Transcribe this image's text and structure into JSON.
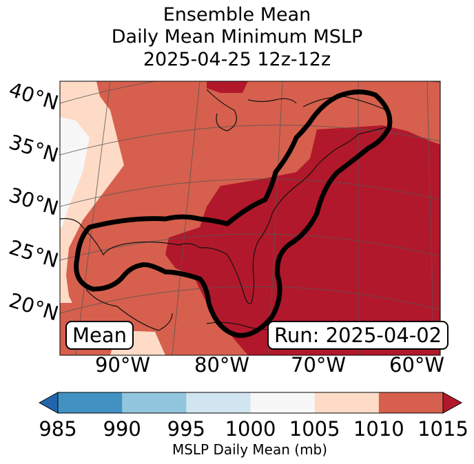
{
  "title": {
    "line1": "Ensemble Mean",
    "line2": "Daily Mean Minimum MSLP",
    "line3": "2025-04-25 12z-12z"
  },
  "latitude_labels": [
    "40°N",
    "35°N",
    "30°N",
    "25°N",
    "20°N"
  ],
  "longitude_labels": [
    "90°W",
    "80°W",
    "70°W",
    "60°W"
  ],
  "mean_box": "Mean",
  "run_box": "Run: 2025-04-02",
  "colorbar": {
    "ticks": [
      "985",
      "990",
      "995",
      "1000",
      "1005",
      "1010",
      "1015"
    ],
    "label": "MSLP Daily Mean (mb)",
    "colors": [
      "#4291c3",
      "#92c5de",
      "#d1e5f0",
      "#f7f7f7",
      "#fddbc7",
      "#d6604d",
      "#b2182b"
    ],
    "extend_low_color": "#2166ac",
    "extend_high_color": "#b2182b"
  },
  "map_colors": {
    "dark": "#b2182b",
    "mid": "#d6604d",
    "light": "#fddbc7",
    "pale": "#f7f7f7"
  }
}
